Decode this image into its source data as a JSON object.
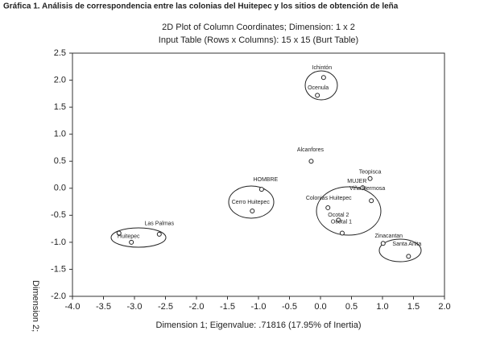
{
  "chart_data": {
    "type": "scatter",
    "figure_title": "Gráfica 1. Análisis de correspondencia entre las colonias del Huitepec y los sitios de obtención de leña",
    "title": "2D Plot of Column Coordinates; Dimension:  1 x 2",
    "subtitle": "Input Table (Rows x Columns): 15 x 15 (Burt Table)",
    "xlabel": "Dimension 1; Eigenvalue: .71816 (17.95% of Inertia)",
    "ylabel": "Dimension 2;",
    "labels": [
      "Ichintón",
      "Ocenula",
      "Alcanfores",
      "HOMBRE",
      "Cerro Huitepec",
      "Teopisca",
      "MUJER",
      "Viña Hermosa",
      "Colonias Huitepec",
      "Ocotal 2",
      "Ocotal 1",
      "Zinacantan",
      "Santa Anita",
      "Las Palmas",
      "Huitepec",
      null
    ],
    "x": [
      0.05,
      -0.05,
      -0.15,
      -0.95,
      -1.1,
      0.8,
      0.68,
      0.82,
      0.12,
      0.29,
      0.35,
      1.01,
      1.42,
      -2.6,
      -3.25,
      -3.05
    ],
    "y": [
      2.05,
      1.72,
      0.5,
      -0.02,
      -0.42,
      0.18,
      0.01,
      -0.23,
      -0.36,
      -0.59,
      -0.83,
      -1.02,
      -1.26,
      -0.85,
      -0.83,
      -1.0
    ],
    "color": "#222222",
    "xlim": [
      -4.0,
      2.0
    ],
    "xticks": [
      {
        "value": -4,
        "label": "-4.0"
      },
      -3.5,
      {
        "value": -3,
        "label": "-3.0"
      },
      -2.5,
      {
        "value": -2,
        "label": "-2.0"
      },
      -1.5,
      {
        "value": -1,
        "label": "-1.0"
      },
      -0.5,
      {
        "value": 0,
        "label": "0.0"
      },
      0.5,
      {
        "value": 1,
        "label": "1.0"
      },
      1.5,
      {
        "value": 2,
        "label": "2.0"
      }
    ],
    "ylim": [
      -2.0,
      2.5
    ],
    "yticks": [
      2.5,
      {
        "value": 2,
        "label": "2.0"
      },
      1.5,
      {
        "value": 1,
        "label": "1.0"
      },
      0.5,
      {
        "value": 0,
        "label": "0.0"
      },
      -0.5,
      {
        "value": -1,
        "label": "-1.0"
      },
      -1.5,
      {
        "value": -2,
        "label": "-2.0"
      }
    ]
  }
}
